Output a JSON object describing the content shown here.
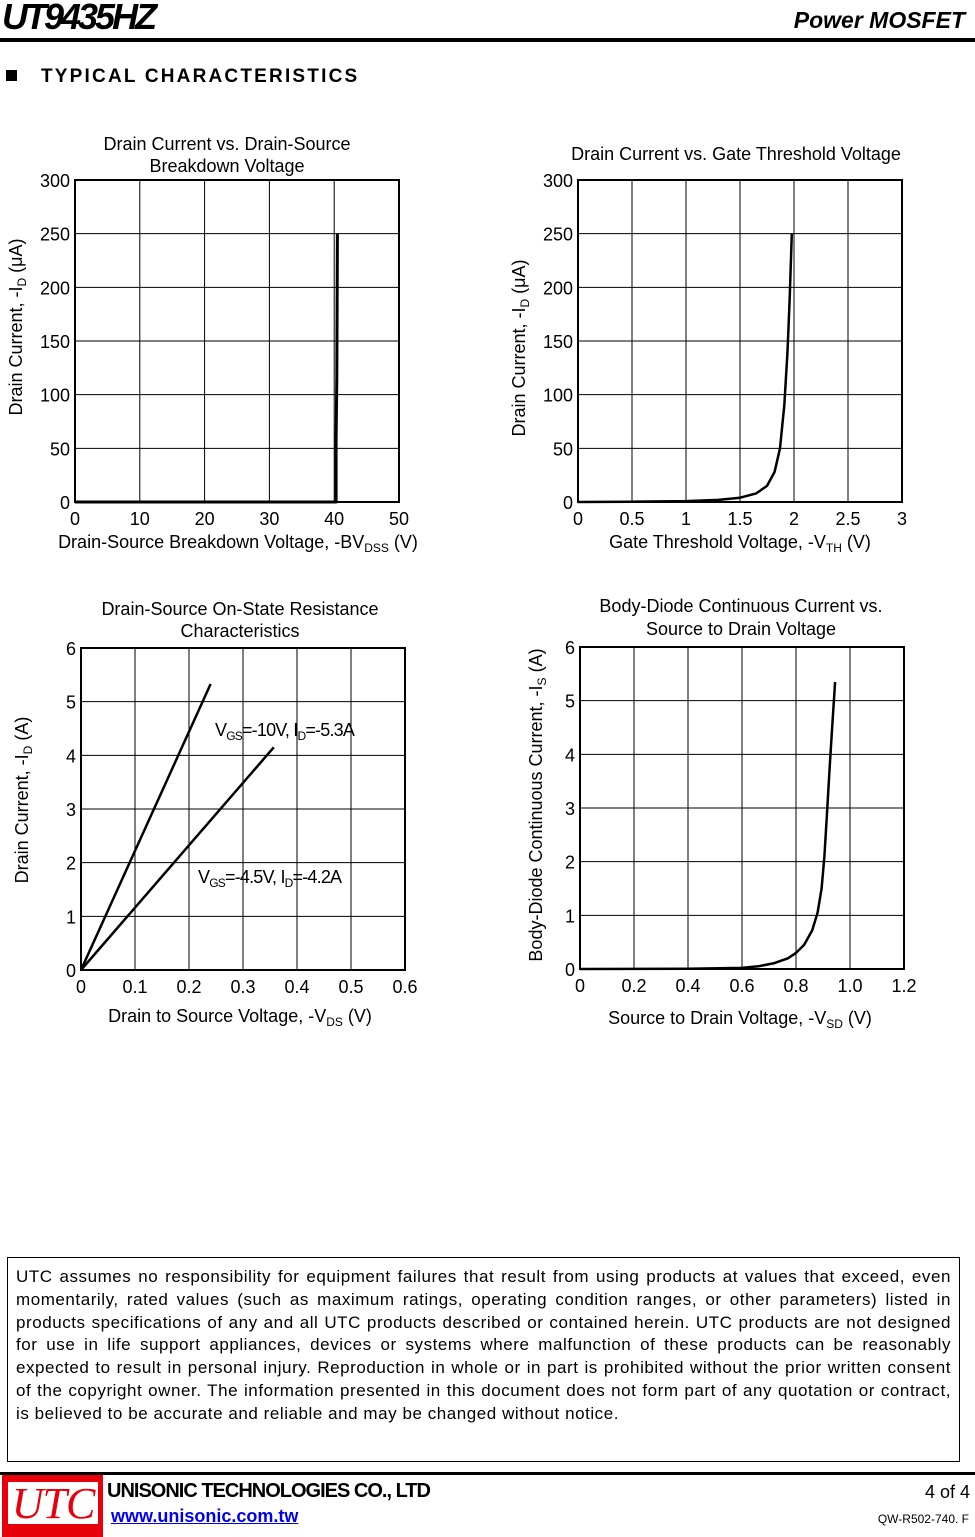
{
  "header": {
    "part_number": "UT9435HZ",
    "product_type": "Power MOSFET"
  },
  "section": {
    "title": "TYPICAL CHARACTERISTICS"
  },
  "chart_data": [
    {
      "type": "line",
      "title": [
        "Drain Current vs. Drain-Source",
        "Breakdown Voltage"
      ],
      "xlabel": {
        "text": "Drain-Source Breakdown Voltage, -BV",
        "sub": "DSS",
        "unit": " (V)"
      },
      "ylabel": {
        "text": "Drain Current, -I",
        "sub": "D",
        "unit": " (μA)"
      },
      "xlim": [
        0,
        50
      ],
      "ylim": [
        0,
        300
      ],
      "xticks": [
        0,
        10,
        20,
        30,
        40,
        50
      ],
      "xtick_labels": [
        "0",
        "10",
        "20",
        "30",
        "40",
        "50"
      ],
      "yticks": [
        0,
        50,
        100,
        150,
        200,
        250,
        300
      ],
      "ytick_labels": [
        "0",
        "50",
        "100",
        "150",
        "200",
        "250",
        "300"
      ],
      "grid": true,
      "series": [
        {
          "x": [
            0,
            40.3,
            40.3,
            40.4,
            40.5
          ],
          "y": [
            0,
            0,
            60,
            115,
            250
          ]
        }
      ],
      "annotations": []
    },
    {
      "type": "line",
      "title": [
        "Drain Current vs. Gate Threshold Voltage"
      ],
      "xlabel": {
        "text": "Gate Threshold Voltage, -V",
        "sub": "TH",
        "unit": " (V)"
      },
      "ylabel": {
        "text": "Drain Current, -I",
        "sub": "D",
        "unit": " (μA)"
      },
      "xlim": [
        0,
        3
      ],
      "ylim": [
        0,
        300
      ],
      "xticks": [
        0,
        0.5,
        1,
        1.5,
        2,
        2.5,
        3
      ],
      "xtick_labels": [
        "0",
        "0.5",
        "1",
        "1.5",
        "2",
        "2.5",
        "3"
      ],
      "yticks": [
        0,
        50,
        100,
        150,
        200,
        250,
        300
      ],
      "ytick_labels": [
        "0",
        "50",
        "100",
        "150",
        "200",
        "250",
        "300"
      ],
      "grid": true,
      "series": [
        {
          "x": [
            0,
            0.5,
            1.0,
            1.3,
            1.5,
            1.65,
            1.75,
            1.82,
            1.87,
            1.91,
            1.94,
            1.96,
            1.98
          ],
          "y": [
            0,
            0.3,
            0.8,
            2,
            4,
            8,
            15,
            28,
            50,
            90,
            140,
            190,
            250
          ]
        }
      ],
      "annotations": []
    },
    {
      "type": "line",
      "title": [
        "Drain-Source On-State Resistance",
        "Characteristics"
      ],
      "xlabel": {
        "text": "Drain to Source Voltage, -V",
        "sub": "DS",
        "unit": " (V)"
      },
      "ylabel": {
        "text": "Drain Current, -I",
        "sub": "D",
        "unit": " (A)"
      },
      "xlim": [
        0,
        0.6
      ],
      "ylim": [
        0,
        6
      ],
      "xticks": [
        0,
        0.1,
        0.2,
        0.3,
        0.4,
        0.5,
        0.6
      ],
      "xtick_labels": [
        "0",
        "0.1",
        "0.2",
        "0.3",
        "0.4",
        "0.5",
        "0.6"
      ],
      "yticks": [
        0,
        1,
        2,
        3,
        4,
        5,
        6
      ],
      "ytick_labels": [
        "0",
        "1",
        "2",
        "3",
        "4",
        "5",
        "6"
      ],
      "grid": true,
      "series": [
        {
          "x": [
            0,
            0.24
          ],
          "y": [
            0,
            5.33
          ]
        },
        {
          "x": [
            0,
            0.357
          ],
          "y": [
            0,
            4.15
          ]
        }
      ],
      "annotations": [
        {
          "parts": [
            {
              "t": "V"
            },
            {
              "t": "GS",
              "sub": true
            },
            {
              "t": "=-10V, I"
            },
            {
              "t": "D",
              "sub": true
            },
            {
              "t": "=-5.3A"
            }
          ]
        },
        {
          "parts": [
            {
              "t": "V"
            },
            {
              "t": "GS",
              "sub": true
            },
            {
              "t": "=-4.5V, I"
            },
            {
              "t": "D",
              "sub": true
            },
            {
              "t": "=-4.2A"
            }
          ]
        }
      ]
    },
    {
      "type": "line",
      "title": [
        "Body-Diode Continuous Current vs.",
        "Source to Drain Voltage"
      ],
      "xlabel": {
        "text": "Source to Drain Voltage, -V",
        "sub": "SD",
        "unit": " (V)"
      },
      "ylabel": {
        "text": "Body-Diode Continuous Current, -I",
        "sub": "S",
        "unit": " (A)"
      },
      "xlim": [
        0,
        1.2
      ],
      "ylim": [
        0,
        6
      ],
      "xticks": [
        0,
        0.2,
        0.4,
        0.6,
        0.8,
        1.0,
        1.2
      ],
      "xtick_labels": [
        "0",
        "0.2",
        "0.4",
        "0.6",
        "0.8",
        "1.0",
        "1.2"
      ],
      "yticks": [
        0,
        1,
        2,
        3,
        4,
        5,
        6
      ],
      "ytick_labels": [
        "0",
        "1",
        "2",
        "3",
        "4",
        "5",
        "6"
      ],
      "grid": true,
      "series": [
        {
          "x": [
            0,
            0.4,
            0.6,
            0.66,
            0.72,
            0.77,
            0.8,
            0.83,
            0.86,
            0.88,
            0.895,
            0.905,
            0.915,
            0.925,
            0.935,
            0.945
          ],
          "y": [
            0,
            0.005,
            0.02,
            0.05,
            0.11,
            0.2,
            0.3,
            0.45,
            0.72,
            1.05,
            1.5,
            2.1,
            2.9,
            3.8,
            4.6,
            5.35
          ]
        }
      ],
      "annotations": []
    }
  ],
  "disclaimer": "UTC assumes no responsibility for equipment failures that result from using products at values that exceed, even momentarily, rated values (such as maximum ratings, operating condition ranges, or other parameters) listed in products specifications of any and all UTC products described or contained herein. UTC products are not designed for use in life support appliances, devices or systems where malfunction of these products can be reasonably expected to result in personal injury. Reproduction in whole or in part is prohibited without the prior written consent of the copyright owner. The information presented in this document does not form part of any quotation or contract, is believed to be accurate and reliable and may be changed without notice.",
  "footer": {
    "logo_text": "UTC",
    "company": "UNISONIC TECHNOLOGIES CO., LTD",
    "url": "www.unisonic.com.tw",
    "page": "4 of 4",
    "doc_number": "QW-R502-740. F",
    "logo_color": "#e8000b"
  }
}
